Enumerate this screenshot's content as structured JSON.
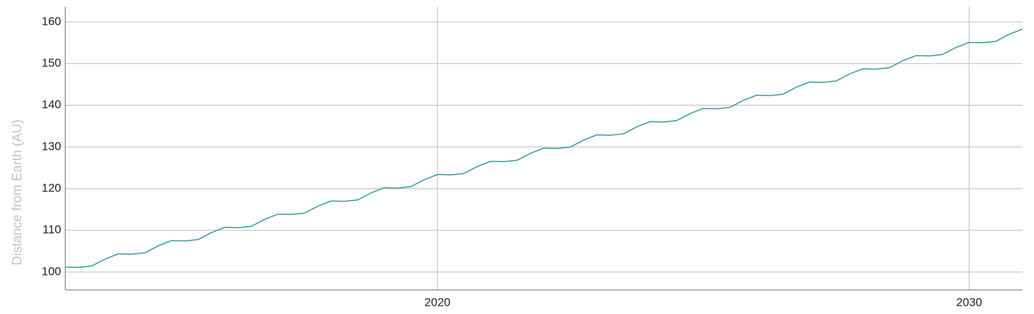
{
  "chart_data": {
    "type": "line",
    "y_label": "Distance from Earth (AU)",
    "x": [
      2013,
      2013.25,
      2013.5,
      2013.75,
      2014,
      2014.25,
      2014.5,
      2014.75,
      2015,
      2015.25,
      2015.5,
      2015.75,
      2016,
      2016.25,
      2016.5,
      2016.75,
      2017,
      2017.25,
      2017.5,
      2017.75,
      2018,
      2018.25,
      2018.5,
      2018.75,
      2019,
      2019.25,
      2019.5,
      2019.75,
      2020,
      2020.25,
      2020.5,
      2020.75,
      2021,
      2021.25,
      2021.5,
      2021.75,
      2022,
      2022.25,
      2022.5,
      2022.75,
      2023,
      2023.25,
      2023.5,
      2023.75,
      2024,
      2024.25,
      2024.5,
      2024.75,
      2025,
      2025.25,
      2025.5,
      2025.75,
      2026,
      2026.25,
      2026.5,
      2026.75,
      2027,
      2027.25,
      2027.5,
      2027.75,
      2028,
      2028.25,
      2028.5,
      2028.75,
      2029,
      2029.25,
      2029.5,
      2029.75,
      2030,
      2030.25,
      2030.5,
      2030.75,
      2031
    ],
    "series": [
      {
        "color": "#3a9ca3",
        "values": [
          101.2,
          101.11,
          101.45,
          103.12,
          104.37,
          104.28,
          104.62,
          106.29,
          107.54,
          107.45,
          107.79,
          109.46,
          110.71,
          110.62,
          110.96,
          112.63,
          113.88,
          113.79,
          114.13,
          115.8,
          117.05,
          116.96,
          117.3,
          118.97,
          120.22,
          120.13,
          120.47,
          122.14,
          123.39,
          123.3,
          123.64,
          125.31,
          126.56,
          126.47,
          126.81,
          128.48,
          129.73,
          129.64,
          129.98,
          131.65,
          132.9,
          132.81,
          133.15,
          134.82,
          136.07,
          135.98,
          136.32,
          137.99,
          139.24,
          139.15,
          139.49,
          141.16,
          142.41,
          142.32,
          142.66,
          144.33,
          145.58,
          145.49,
          145.83,
          147.5,
          148.75,
          148.66,
          149.0,
          150.67,
          151.92,
          151.83,
          152.17,
          153.84,
          155.09,
          155.0,
          155.34,
          157.01,
          158.26
        ]
      }
    ],
    "xlim": [
      2013,
      2031
    ],
    "xticks": [
      2020,
      2030
    ],
    "ylim": [
      95.7,
      163.6
    ],
    "yticks": [
      100,
      110,
      120,
      130,
      140,
      150,
      160
    ],
    "grid": true
  }
}
